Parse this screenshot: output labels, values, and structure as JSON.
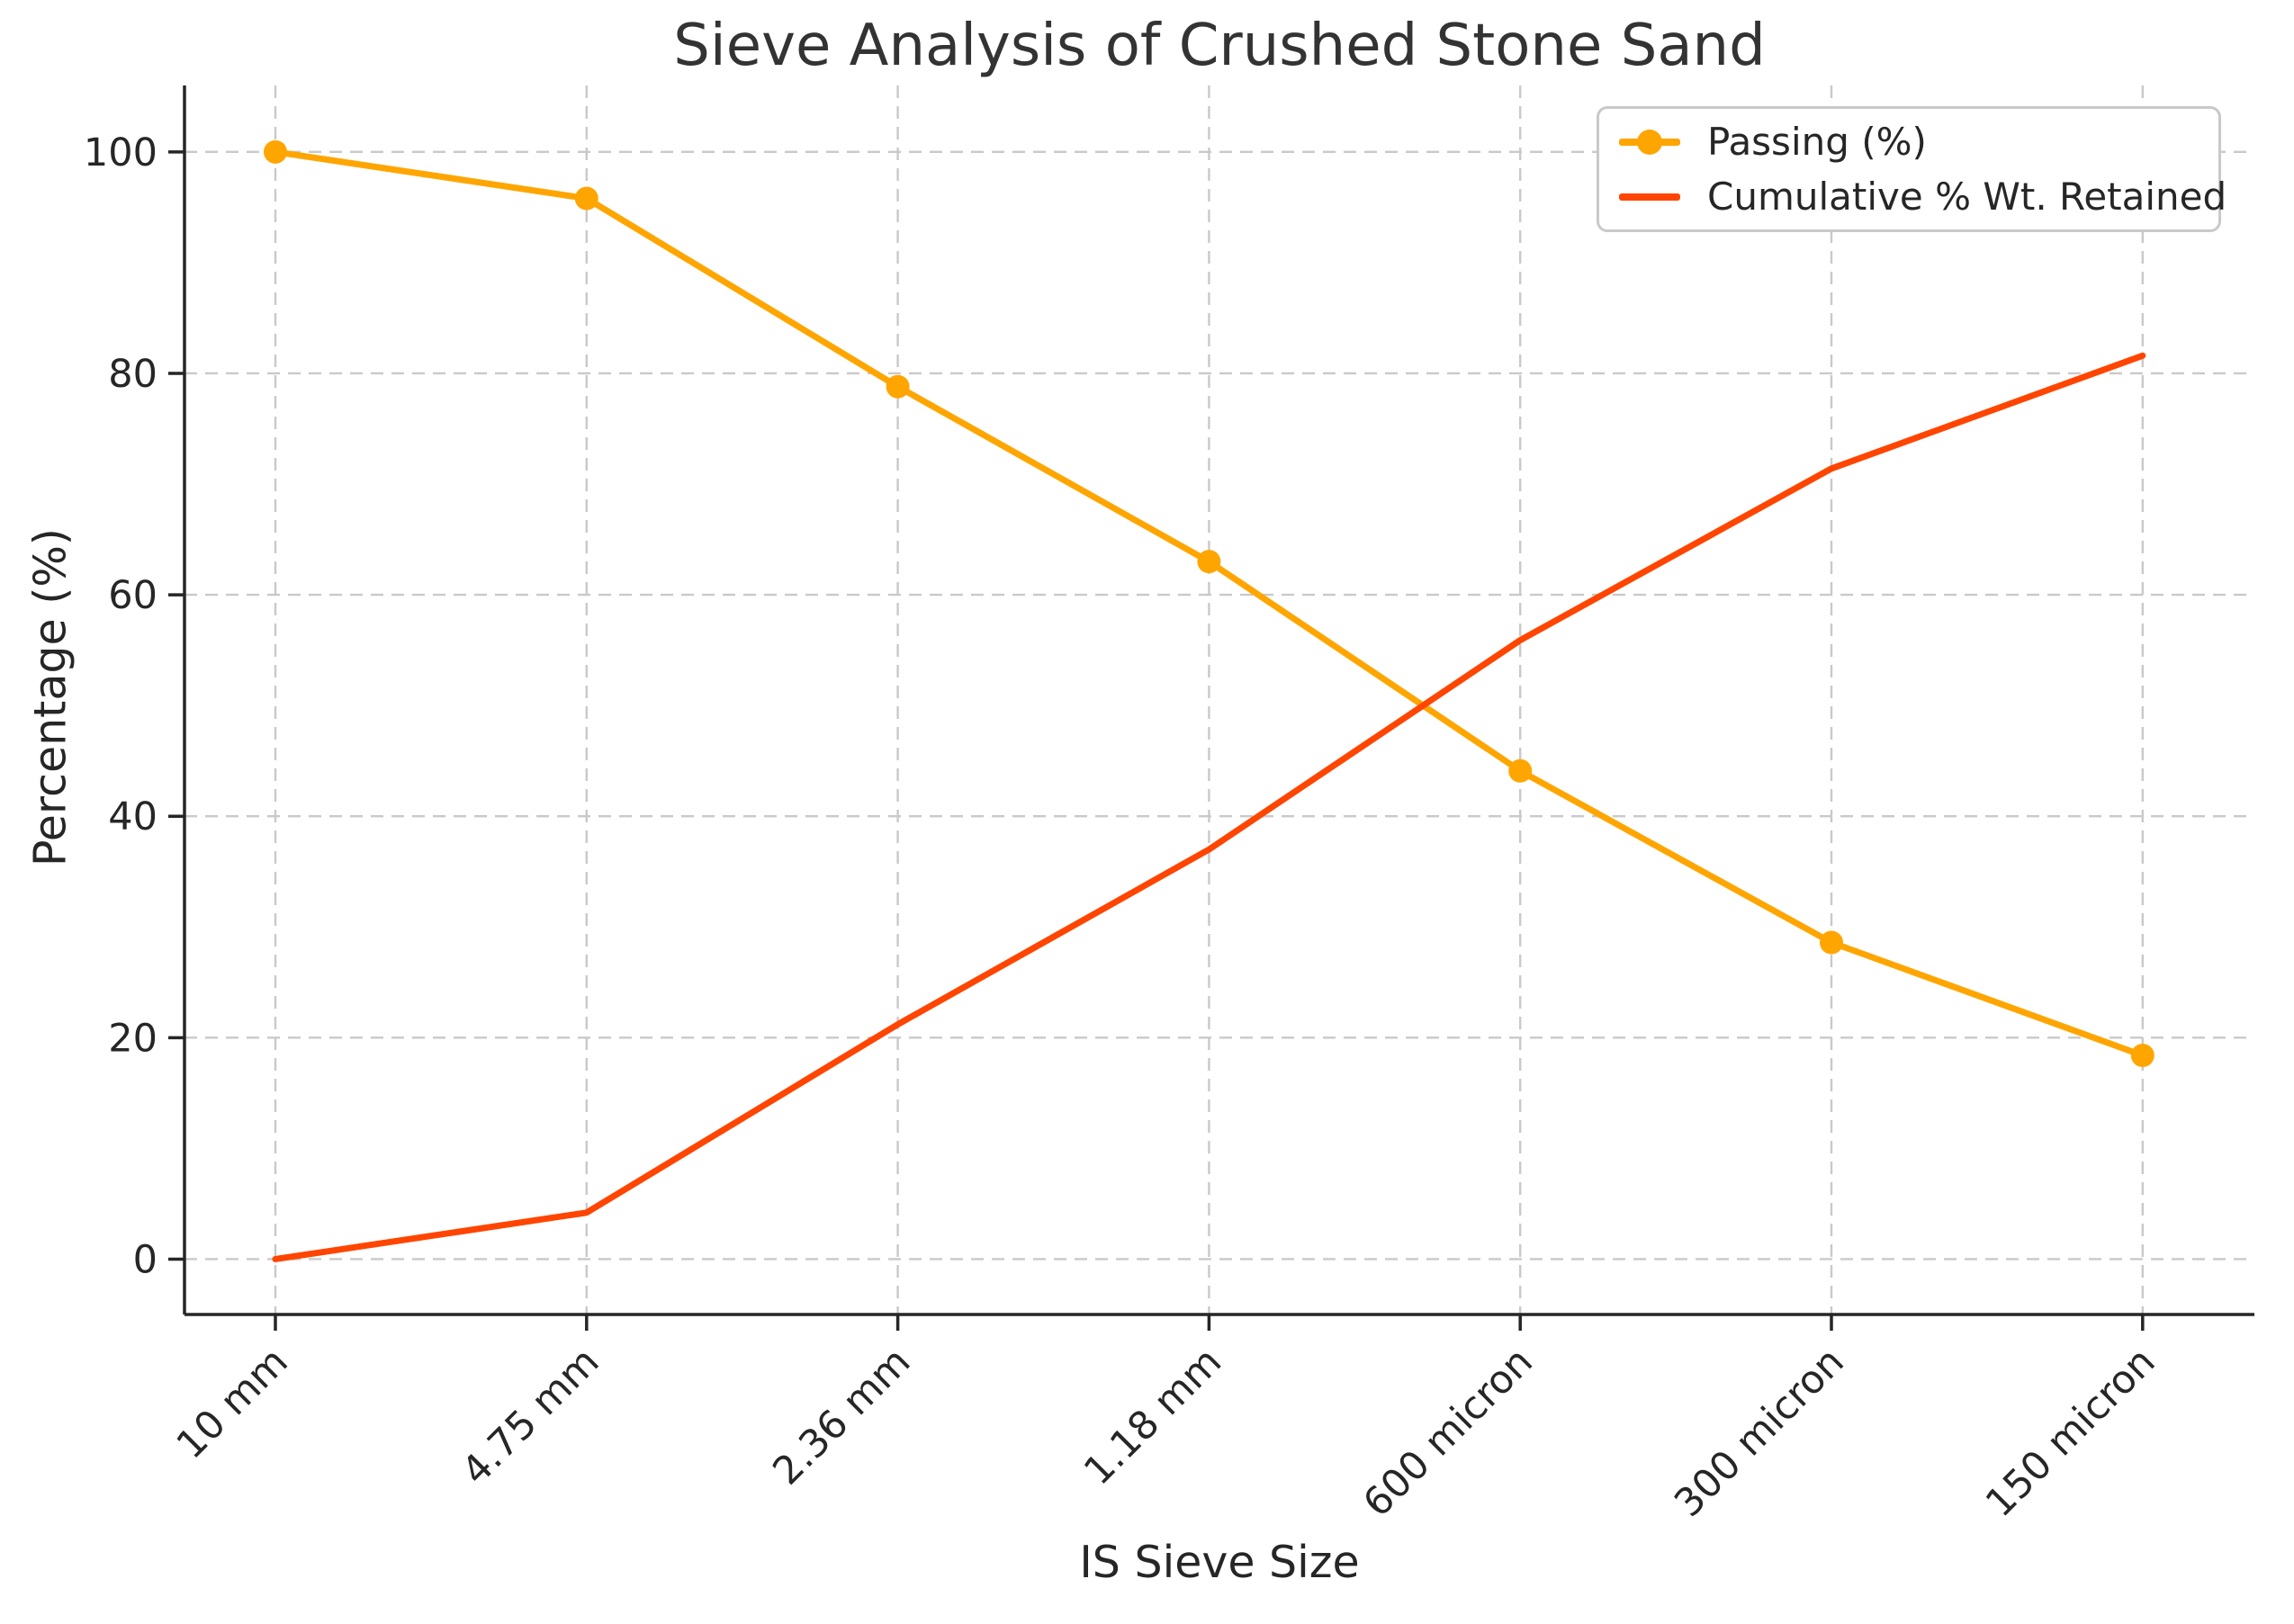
{
  "chart_data": {
    "type": "line",
    "title": "Sieve Analysis of Crushed Stone Sand",
    "xlabel": "IS Sieve Size",
    "ylabel": "Percentage (%)",
    "categories": [
      "10 mm",
      "4.75 mm",
      "2.36 mm",
      "1.18 mm",
      "600 micron",
      "300 micron",
      "150 micron"
    ],
    "series": [
      {
        "name": "Passing (%)",
        "color": "#FFA500",
        "marker": "circle",
        "values": [
          100,
          95.8,
          78.8,
          63.0,
          44.1,
          28.6,
          18.4
        ]
      },
      {
        "name": "Cumulative % Wt. Retained",
        "color": "#FF4500",
        "marker": "none",
        "values": [
          0,
          4.2,
          21.2,
          37.0,
          55.9,
          71.4,
          81.6
        ]
      }
    ],
    "yticks": [
      0,
      20,
      40,
      60,
      80,
      100
    ],
    "ylim": [
      -5,
      106
    ],
    "grid": "dashed-both-axes",
    "legend_position": "upper-right",
    "spines": "left-bottom-only"
  },
  "colors": {
    "grid": "#c9c9c9",
    "spine": "#262626",
    "text": "#262626",
    "title": "#333333"
  }
}
